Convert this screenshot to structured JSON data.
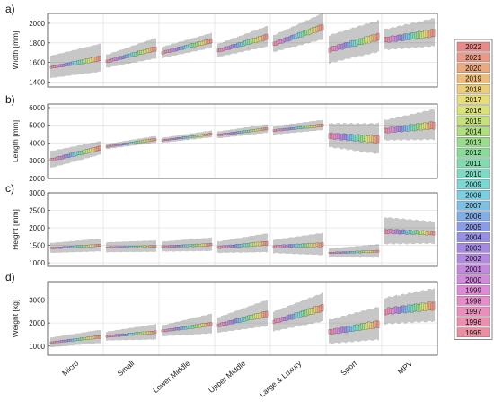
{
  "chart_data": {
    "type": "boxplot",
    "categories": [
      "Micro",
      "Small",
      "Lower Middle",
      "Upper Middle",
      "Large & Luxury",
      "Sport",
      "MPV"
    ],
    "legend": {
      "placement": "right",
      "entries": [
        "2022",
        "2021",
        "2020",
        "2019",
        "2018",
        "2017",
        "2016",
        "2015",
        "2014",
        "2013",
        "2012",
        "2011",
        "2010",
        "2009",
        "2008",
        "2007",
        "2006",
        "2005",
        "2004",
        "2003",
        "2002",
        "2001",
        "2000",
        "1999",
        "1998",
        "1997",
        "1996",
        "1995"
      ],
      "colors": [
        "#e88a8a",
        "#e89a86",
        "#eaa97f",
        "#ecbc7c",
        "#eccd7a",
        "#e8dd7a",
        "#d9e27a",
        "#c4e27c",
        "#aee080",
        "#98dd8a",
        "#88dc98",
        "#80dcae",
        "#7cdbc2",
        "#7ad8d4",
        "#7ad0e2",
        "#7cc0e6",
        "#82aee8",
        "#8a9ce8",
        "#9690e6",
        "#a48ae4",
        "#b488e2",
        "#c488e0",
        "#d28ade",
        "#de8ad8",
        "#e68cca",
        "#ea8ebc",
        "#ec8eae",
        "#ec8ea0"
      ]
    },
    "panels": [
      {
        "label": "a)",
        "ylabel": "Width [mm]",
        "ylim": [
          1350,
          2100
        ],
        "yticks": [
          1400,
          1600,
          1800,
          2000
        ],
        "medians": [
          [
            1550,
            1640
          ],
          [
            1610,
            1740
          ],
          [
            1700,
            1820
          ],
          [
            1720,
            1860
          ],
          [
            1790,
            1960
          ],
          [
            1730,
            1860
          ],
          [
            1830,
            1900
          ]
        ],
        "iqr": [
          [
            20,
            50
          ],
          [
            25,
            45
          ],
          [
            25,
            45
          ],
          [
            30,
            55
          ],
          [
            35,
            60
          ],
          [
            45,
            70
          ],
          [
            50,
            75
          ]
        ],
        "whisker": [
          [
            120,
            150
          ],
          [
            70,
            110
          ],
          [
            60,
            80
          ],
          [
            70,
            110
          ],
          [
            90,
            140
          ],
          [
            150,
            170
          ],
          [
            110,
            150
          ]
        ]
      },
      {
        "label": "b)",
        "ylabel": "Length [mm]",
        "ylim": [
          2000,
          6200
        ],
        "yticks": [
          2000,
          3000,
          4000,
          5000,
          6000
        ],
        "medians": [
          [
            3050,
            3700
          ],
          [
            3800,
            4200
          ],
          [
            4150,
            4500
          ],
          [
            4450,
            4800
          ],
          [
            4700,
            5000
          ],
          [
            4400,
            4200
          ],
          [
            4700,
            5000
          ]
        ],
        "iqr": [
          [
            150,
            250
          ],
          [
            80,
            120
          ],
          [
            80,
            110
          ],
          [
            90,
            130
          ],
          [
            100,
            150
          ],
          [
            300,
            400
          ],
          [
            250,
            400
          ]
        ],
        "whisker": [
          [
            500,
            400
          ],
          [
            150,
            200
          ],
          [
            150,
            200
          ],
          [
            200,
            250
          ],
          [
            250,
            300
          ],
          [
            700,
            900
          ],
          [
            600,
            900
          ]
        ]
      },
      {
        "label": "c)",
        "ylabel": "Height [mm]",
        "ylim": [
          900,
          3000
        ],
        "yticks": [
          1000,
          1500,
          2000,
          2500,
          3000
        ],
        "medians": [
          [
            1420,
            1500
          ],
          [
            1440,
            1470
          ],
          [
            1460,
            1520
          ],
          [
            1440,
            1560
          ],
          [
            1460,
            1520
          ],
          [
            1280,
            1330
          ],
          [
            1900,
            1850
          ]
        ],
        "iqr": [
          [
            40,
            60
          ],
          [
            40,
            50
          ],
          [
            50,
            70
          ],
          [
            60,
            110
          ],
          [
            70,
            110
          ],
          [
            40,
            60
          ],
          [
            120,
            100
          ]
        ],
        "whisker": [
          [
            150,
            190
          ],
          [
            150,
            170
          ],
          [
            150,
            200
          ],
          [
            170,
            280
          ],
          [
            200,
            330
          ],
          [
            130,
            200
          ],
          [
            400,
            330
          ]
        ]
      },
      {
        "label": "d)",
        "ylabel": "Weight [kg]",
        "ylim": [
          600,
          3800
        ],
        "yticks": [
          1000,
          2000,
          3000
        ],
        "medians": [
          [
            1150,
            1400
          ],
          [
            1420,
            1600
          ],
          [
            1650,
            1950
          ],
          [
            1900,
            2400
          ],
          [
            2050,
            2650
          ],
          [
            1600,
            1950
          ],
          [
            2500,
            2750
          ]
        ],
        "iqr": [
          [
            70,
            120
          ],
          [
            80,
            120
          ],
          [
            90,
            150
          ],
          [
            120,
            250
          ],
          [
            150,
            300
          ],
          [
            200,
            300
          ],
          [
            250,
            350
          ]
        ],
        "whisker": [
          [
            220,
            300
          ],
          [
            200,
            350
          ],
          [
            250,
            450
          ],
          [
            350,
            600
          ],
          [
            450,
            650
          ],
          [
            550,
            750
          ],
          [
            600,
            750
          ]
        ]
      }
    ]
  }
}
